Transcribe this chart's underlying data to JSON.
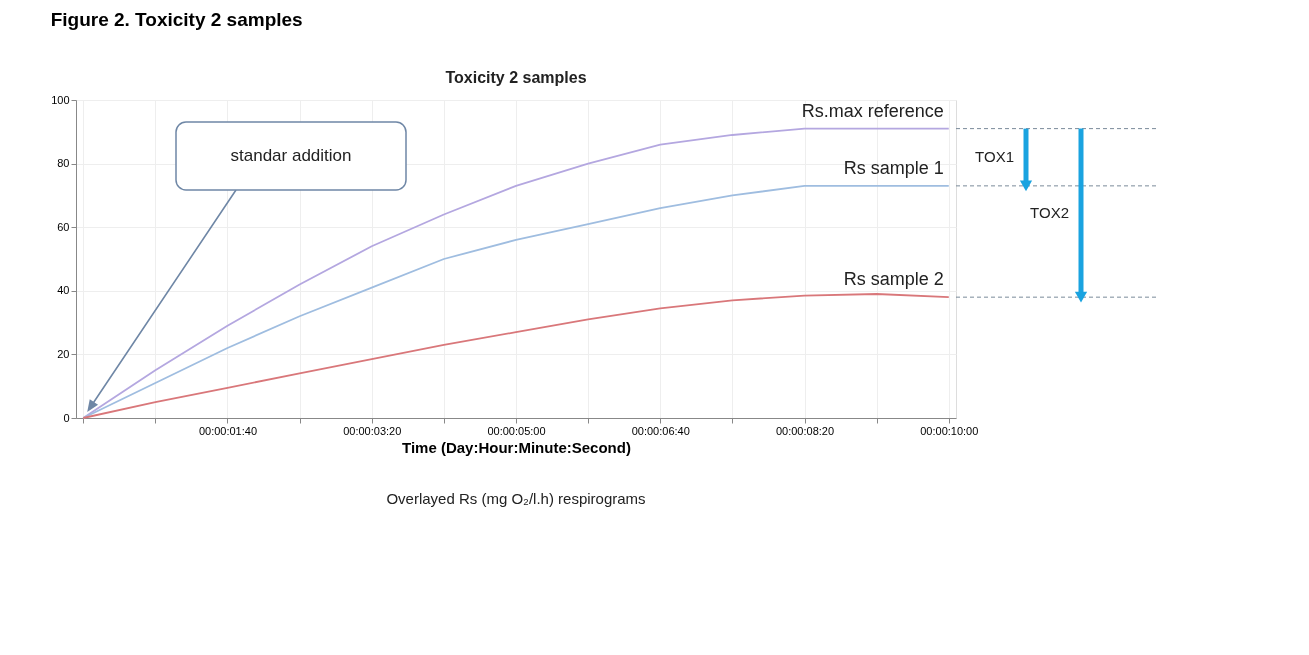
{
  "chart_data": {
    "type": "line",
    "title": "Figure 2. Toxicity 2 samples",
    "subtitle": "Toxicity 2 samples",
    "xlabel": "Time (Day:Hour:Minute:Second)",
    "annotations": [
      "standar addition",
      "TOX1",
      "TOX2",
      "Overlayed Rs (mg O₂/l.h) respirograms"
    ],
    "ylim": [
      0,
      100
    ],
    "categories": [
      null,
      null,
      "00:00:01:40",
      null,
      "00:00:03:20",
      null,
      "00:00:05:00",
      null,
      "00:00:06:40",
      null,
      "00:00:08:20",
      null,
      "00:00:10:00"
    ],
    "yticks": [
      0,
      20,
      40,
      60,
      80,
      100
    ],
    "grid": true,
    "legend": false,
    "marker": "none",
    "line_style": "solid",
    "series": [
      {
        "name": "Rs.max reference",
        "color": "#b4a7e0",
        "values": [
          0,
          15,
          29,
          42,
          54,
          64,
          73,
          80,
          86,
          89,
          91,
          91,
          91
        ]
      },
      {
        "name": "Rs sample 1",
        "color": "#9fbde0",
        "values": [
          0,
          11,
          22,
          32,
          41,
          50,
          56,
          61,
          66,
          70,
          73,
          73,
          73
        ]
      },
      {
        "name": "Rs sample 2",
        "color": "#d9777a",
        "values": [
          0,
          5,
          9.5,
          14,
          18.5,
          23,
          27,
          31,
          34.5,
          37,
          38.5,
          39,
          38
        ]
      }
    ]
  }
}
